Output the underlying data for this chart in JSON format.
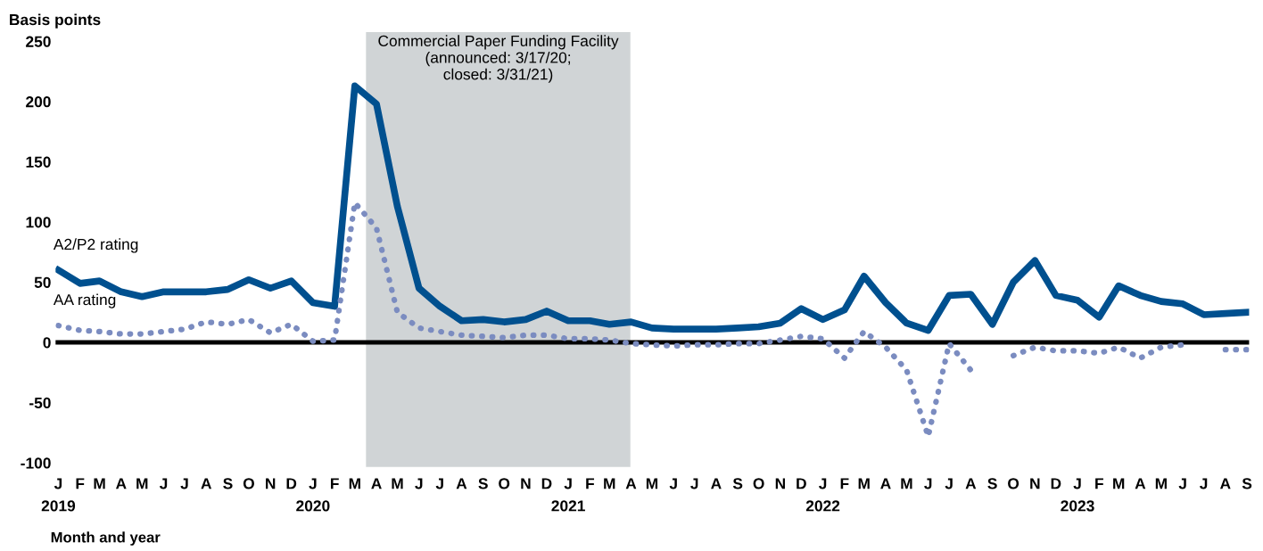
{
  "chart_data": {
    "type": "line",
    "ylabel": "Basis points",
    "xlabel": "Month and year",
    "x": [
      "2019-01",
      "2019-02",
      "2019-03",
      "2019-04",
      "2019-05",
      "2019-06",
      "2019-07",
      "2019-08",
      "2019-09",
      "2019-10",
      "2019-11",
      "2019-12",
      "2020-01",
      "2020-02",
      "2020-03",
      "2020-04",
      "2020-05",
      "2020-06",
      "2020-07",
      "2020-08",
      "2020-09",
      "2020-10",
      "2020-11",
      "2020-12",
      "2021-01",
      "2021-02",
      "2021-03",
      "2021-04",
      "2021-05",
      "2021-06",
      "2021-07",
      "2021-08",
      "2021-09",
      "2021-10",
      "2021-11",
      "2021-12",
      "2022-01",
      "2022-02",
      "2022-03",
      "2022-04",
      "2022-05",
      "2022-06",
      "2022-07",
      "2022-08",
      "2022-09",
      "2022-10",
      "2022-11",
      "2022-12",
      "2023-01",
      "2023-02",
      "2023-03",
      "2023-04",
      "2023-05",
      "2023-06",
      "2023-07",
      "2023-08",
      "2023-09"
    ],
    "series": [
      {
        "name": "A2/P2 rating",
        "color": "#00508f",
        "line_style": "solid",
        "values": [
          60,
          49,
          51,
          42,
          38,
          42,
          42,
          42,
          44,
          52,
          45,
          51,
          33,
          30,
          213,
          198,
          113,
          45,
          30,
          18,
          19,
          17,
          19,
          26,
          18,
          18,
          15,
          17,
          12,
          11,
          11,
          11,
          12,
          13,
          16,
          28,
          19,
          27,
          55,
          33,
          16,
          10,
          39,
          40,
          15,
          50,
          68,
          39,
          35,
          21,
          47,
          39,
          34,
          32,
          23,
          24,
          25
        ]
      },
      {
        "name": "AA rating",
        "color": "#7b8cc0",
        "line_style": "dotted",
        "values": [
          14,
          10,
          9,
          7,
          7,
          9,
          11,
          17,
          15,
          19,
          8,
          15,
          1,
          2,
          116,
          95,
          25,
          12,
          9,
          6,
          5,
          4,
          6,
          6,
          3,
          3,
          2,
          -1,
          -2,
          -3,
          -2,
          -2,
          -1,
          -1,
          2,
          5,
          3,
          -13,
          9,
          -4,
          -23,
          -78,
          -1,
          -23,
          null,
          -11,
          -4,
          -7,
          -7,
          -9,
          -4,
          -13,
          -4,
          -2,
          null,
          -6,
          -6
        ]
      }
    ],
    "xlim": [
      "2018-12-28",
      "2023-09-04"
    ],
    "xticks": [
      {
        "value": "2019-01",
        "label": "J\n2019"
      },
      {
        "value": "2019-02",
        "label": "F"
      },
      {
        "value": "2019-03",
        "label": "M"
      },
      {
        "value": "2019-04",
        "label": "A"
      },
      {
        "value": "2019-05",
        "label": "M"
      },
      {
        "value": "2019-06",
        "label": "J"
      },
      {
        "value": "2019-07",
        "label": "J"
      },
      {
        "value": "2019-08",
        "label": "A"
      },
      {
        "value": "2019-09",
        "label": "S"
      },
      {
        "value": "2019-10",
        "label": "O"
      },
      {
        "value": "2019-11",
        "label": "N"
      },
      {
        "value": "2019-12",
        "label": "D"
      },
      {
        "value": "2020-01",
        "label": "J\n2020"
      },
      {
        "value": "2020-02",
        "label": "F"
      },
      {
        "value": "2020-03",
        "label": "M"
      },
      {
        "value": "2020-04",
        "label": "A"
      },
      {
        "value": "2020-05",
        "label": "M"
      },
      {
        "value": "2020-06",
        "label": "J"
      },
      {
        "value": "2020-07",
        "label": "J"
      },
      {
        "value": "2020-08",
        "label": "A"
      },
      {
        "value": "2020-09",
        "label": "S"
      },
      {
        "value": "2020-10",
        "label": "O"
      },
      {
        "value": "2020-11",
        "label": "N"
      },
      {
        "value": "2020-12",
        "label": "D"
      },
      {
        "value": "2021-01",
        "label": "J\n2021"
      },
      {
        "value": "2021-02",
        "label": "F"
      },
      {
        "value": "2021-03",
        "label": "M"
      },
      {
        "value": "2021-04",
        "label": "A"
      },
      {
        "value": "2021-05",
        "label": "M"
      },
      {
        "value": "2021-06",
        "label": "J"
      },
      {
        "value": "2021-07",
        "label": "J"
      },
      {
        "value": "2021-08",
        "label": "A"
      },
      {
        "value": "2021-09",
        "label": "S"
      },
      {
        "value": "2021-10",
        "label": "O"
      },
      {
        "value": "2021-11",
        "label": "N"
      },
      {
        "value": "2021-12",
        "label": "D"
      },
      {
        "value": "2022-01",
        "label": "J\n2022"
      },
      {
        "value": "2022-02",
        "label": "F"
      },
      {
        "value": "2022-03",
        "label": "M"
      },
      {
        "value": "2022-04",
        "label": "A"
      },
      {
        "value": "2022-05",
        "label": "M"
      },
      {
        "value": "2022-06",
        "label": "J"
      },
      {
        "value": "2022-07",
        "label": "J"
      },
      {
        "value": "2022-08",
        "label": "A"
      },
      {
        "value": "2022-09",
        "label": "S"
      },
      {
        "value": "2022-10",
        "label": "O"
      },
      {
        "value": "2022-11",
        "label": "N"
      },
      {
        "value": "2022-12",
        "label": "D"
      },
      {
        "value": "2023-01",
        "label": "J\n2023"
      },
      {
        "value": "2023-02",
        "label": "F"
      },
      {
        "value": "2023-03",
        "label": "M"
      },
      {
        "value": "2023-04",
        "label": "A"
      },
      {
        "value": "2023-05",
        "label": "M"
      },
      {
        "value": "2023-06",
        "label": "J"
      },
      {
        "value": "2023-07",
        "label": "J"
      },
      {
        "value": "2023-08",
        "label": "A"
      },
      {
        "value": "2023-09",
        "label": "S"
      }
    ],
    "ylim": [
      -100,
      250
    ],
    "yticks": [
      -100,
      -50,
      0,
      50,
      100,
      150,
      200,
      250
    ],
    "ref_lines": [
      {
        "axis": "y",
        "value": 0,
        "color": "#000000",
        "line_style": "solid"
      }
    ],
    "bands": [
      {
        "axis": "x",
        "from": "2020-03-17",
        "to": "2021-03-31",
        "color": "#d0d4d6",
        "label": "Commercial Paper Funding Facility\n(announced: 3/17/20;\nclosed: 3/31/21)"
      }
    ],
    "grid": false,
    "legend": false,
    "marker": "none"
  }
}
